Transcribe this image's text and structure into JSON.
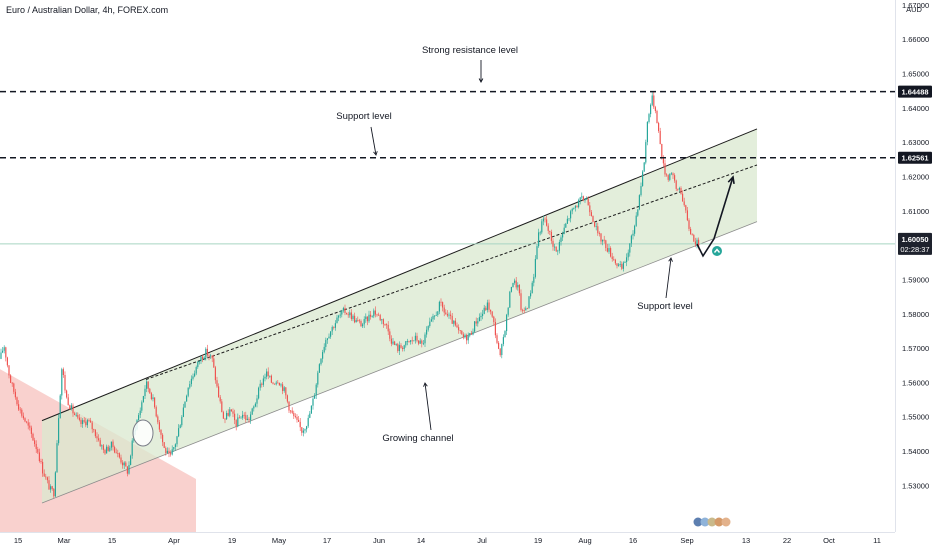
{
  "header": {
    "symbol": "Euro / Australian Dollar, 4h, FOREX.com"
  },
  "colors": {
    "up": "#26a69a",
    "down": "#ef5350",
    "channel_fill": "#d9e8cf",
    "channel_line": "#1c1c1c",
    "down_zone": "#f7c6c2",
    "current_line": "#a8d5c2",
    "tag_bg": "#131722",
    "current_tag_bg": "#1e222d"
  },
  "price_axis": {
    "currency": "AUD",
    "ticks": [
      "1.67000",
      "1.66000",
      "1.65000",
      "1.64000",
      "1.63000",
      "1.62000",
      "1.61000",
      "1.60000",
      "1.59000",
      "1.58000",
      "1.57000",
      "1.56000",
      "1.55000",
      "1.54000",
      "1.53000"
    ],
    "levels": [
      {
        "name": "strong-resistance-tag",
        "price": "1.64488"
      },
      {
        "name": "support-tag",
        "price": "1.62561"
      }
    ],
    "current": {
      "price": "1.60050",
      "countdown": "02:28:37"
    }
  },
  "time_axis": {
    "labels": [
      "15",
      "Mar",
      "15",
      "Apr",
      "19",
      "May",
      "17",
      "Jun",
      "14",
      "Jul",
      "19",
      "Aug",
      "16",
      "Sep",
      "13",
      "22",
      "Oct",
      "11"
    ]
  },
  "annotations": {
    "strong_resistance": "Strong resistance level",
    "support_upper": "Support level",
    "support_lower": "Support level",
    "growing_channel": "Growing channel"
  },
  "chart_data": {
    "type": "candlestick",
    "title": "Euro / Australian Dollar, 4h, FOREX.com",
    "ylim": [
      1.525,
      1.671
    ],
    "horizontal_levels": [
      1.64488,
      1.62561
    ],
    "current_price": 1.6005,
    "months": [
      "Mar",
      "Apr",
      "May",
      "Jun",
      "Jul",
      "Aug",
      "Sep",
      "Oct"
    ],
    "price_path": [
      [
        0,
        1.567
      ],
      [
        4,
        1.571
      ],
      [
        10,
        1.561
      ],
      [
        20,
        1.552
      ],
      [
        30,
        1.546
      ],
      [
        38,
        1.54
      ],
      [
        42,
        1.535
      ],
      [
        46,
        1.532
      ],
      [
        50,
        1.529
      ],
      [
        54,
        1.528
      ],
      [
        58,
        1.548
      ],
      [
        62,
        1.565
      ],
      [
        66,
        1.556
      ],
      [
        72,
        1.552
      ],
      [
        80,
        1.548
      ],
      [
        88,
        1.549
      ],
      [
        96,
        1.545
      ],
      [
        104,
        1.54
      ],
      [
        112,
        1.542
      ],
      [
        120,
        1.538
      ],
      [
        128,
        1.534
      ],
      [
        134,
        1.546
      ],
      [
        140,
        1.552
      ],
      [
        146,
        1.56
      ],
      [
        152,
        1.556
      ],
      [
        158,
        1.549
      ],
      [
        164,
        1.541
      ],
      [
        170,
        1.538
      ],
      [
        176,
        1.543
      ],
      [
        182,
        1.551
      ],
      [
        188,
        1.559
      ],
      [
        194,
        1.563
      ],
      [
        200,
        1.567
      ],
      [
        206,
        1.569
      ],
      [
        212,
        1.567
      ],
      [
        218,
        1.557
      ],
      [
        224,
        1.549
      ],
      [
        230,
        1.552
      ],
      [
        236,
        1.548
      ],
      [
        242,
        1.551
      ],
      [
        248,
        1.549
      ],
      [
        254,
        1.553
      ],
      [
        260,
        1.559
      ],
      [
        266,
        1.563
      ],
      [
        272,
        1.56
      ],
      [
        278,
        1.561
      ],
      [
        284,
        1.558
      ],
      [
        290,
        1.552
      ],
      [
        296,
        1.549
      ],
      [
        302,
        1.546
      ],
      [
        308,
        1.549
      ],
      [
        314,
        1.556
      ],
      [
        320,
        1.567
      ],
      [
        326,
        1.573
      ],
      [
        332,
        1.576
      ],
      [
        338,
        1.579
      ],
      [
        344,
        1.581
      ],
      [
        350,
        1.58
      ],
      [
        356,
        1.578
      ],
      [
        362,
        1.577
      ],
      [
        368,
        1.579
      ],
      [
        374,
        1.581
      ],
      [
        380,
        1.579
      ],
      [
        386,
        1.577
      ],
      [
        392,
        1.572
      ],
      [
        398,
        1.57
      ],
      [
        404,
        1.571
      ],
      [
        410,
        1.572
      ],
      [
        416,
        1.573
      ],
      [
        422,
        1.571
      ],
      [
        428,
        1.576
      ],
      [
        434,
        1.579
      ],
      [
        440,
        1.583
      ],
      [
        446,
        1.58
      ],
      [
        452,
        1.578
      ],
      [
        458,
        1.575
      ],
      [
        464,
        1.573
      ],
      [
        470,
        1.574
      ],
      [
        476,
        1.578
      ],
      [
        482,
        1.58
      ],
      [
        488,
        1.583
      ],
      [
        494,
        1.577
      ],
      [
        500,
        1.567
      ],
      [
        506,
        1.578
      ],
      [
        512,
        1.59
      ],
      [
        518,
        1.588
      ],
      [
        522,
        1.58
      ],
      [
        528,
        1.583
      ],
      [
        534,
        1.592
      ],
      [
        538,
        1.603
      ],
      [
        544,
        1.608
      ],
      [
        550,
        1.603
      ],
      [
        556,
        1.598
      ],
      [
        562,
        1.603
      ],
      [
        568,
        1.608
      ],
      [
        574,
        1.611
      ],
      [
        580,
        1.613
      ],
      [
        586,
        1.614
      ],
      [
        592,
        1.609
      ],
      [
        598,
        1.603
      ],
      [
        604,
        1.601
      ],
      [
        610,
        1.598
      ],
      [
        616,
        1.595
      ],
      [
        622,
        1.593
      ],
      [
        628,
        1.598
      ],
      [
        634,
        1.605
      ],
      [
        638,
        1.612
      ],
      [
        644,
        1.624
      ],
      [
        648,
        1.638
      ],
      [
        652,
        1.643
      ],
      [
        656,
        1.639
      ],
      [
        660,
        1.63
      ],
      [
        664,
        1.622
      ],
      [
        668,
        1.62
      ],
      [
        672,
        1.622
      ],
      [
        676,
        1.616
      ],
      [
        680,
        1.617
      ],
      [
        684,
        1.612
      ],
      [
        688,
        1.606
      ],
      [
        692,
        1.603
      ],
      [
        696,
        1.601
      ],
      [
        700,
        1.6
      ]
    ],
    "projection": [
      [
        697,
        1.6005
      ],
      [
        703,
        1.597
      ],
      [
        714,
        1.602
      ],
      [
        733,
        1.62
      ]
    ],
    "channel": {
      "upper": [
        [
          42,
          1.549
        ],
        [
          757,
          1.634
        ]
      ],
      "lower": [
        [
          42,
          1.525
        ],
        [
          757,
          1.607
        ]
      ],
      "midline": [
        [
          146,
          1.561
        ],
        [
          757,
          1.6235
        ]
      ]
    },
    "declining_zone": {
      "x_from": 0,
      "x_to": 196,
      "top_start": 1.564,
      "top_end": 1.532
    }
  }
}
